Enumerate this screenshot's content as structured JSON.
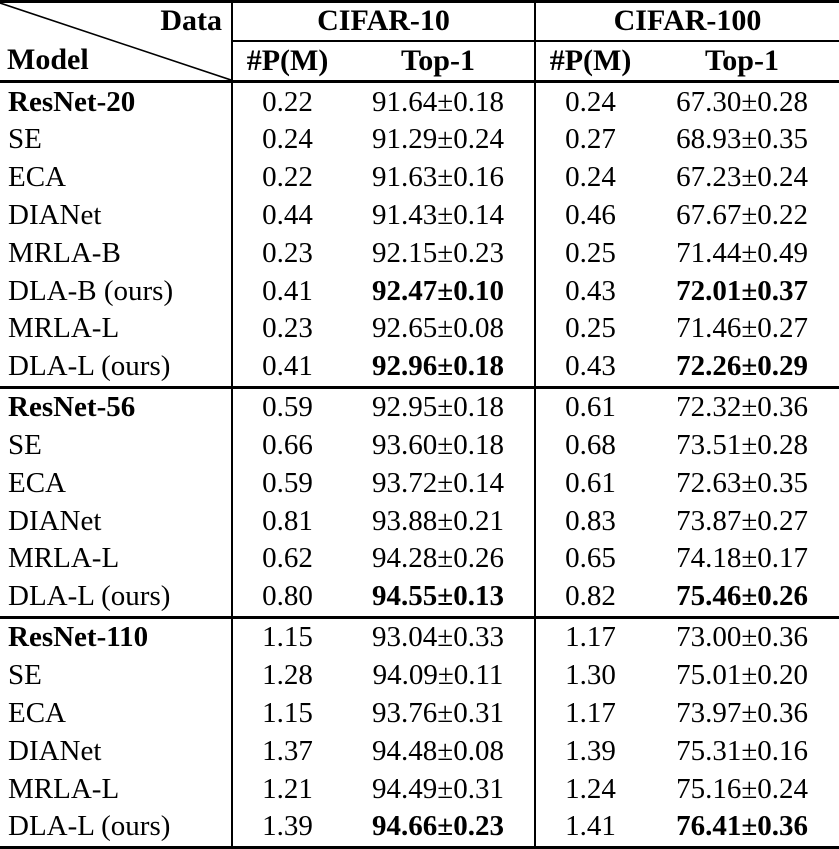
{
  "page": {
    "background": "#ffffff"
  },
  "table": {
    "colors": {
      "text": "#000000",
      "rule": "#000000",
      "background": "#ffffff"
    },
    "corner": {
      "top_right_label": "Data",
      "bottom_left_label": "Model"
    },
    "column_groups": [
      {
        "label": "CIFAR-10"
      },
      {
        "label": "CIFAR-100"
      }
    ],
    "sub_columns": {
      "params": "#P(M)",
      "top1": "Top-1"
    },
    "sections": [
      {
        "rows": [
          {
            "model": "ResNet-20",
            "model_bold": true,
            "cells": [
              {
                "v": "0.22"
              },
              {
                "v": "91.64±0.18"
              },
              {
                "v": "0.24"
              },
              {
                "v": "67.30±0.28"
              }
            ]
          },
          {
            "model": "SE",
            "model_bold": false,
            "cells": [
              {
                "v": "0.24"
              },
              {
                "v": "91.29±0.24"
              },
              {
                "v": "0.27"
              },
              {
                "v": "68.93±0.35"
              }
            ]
          },
          {
            "model": "ECA",
            "model_bold": false,
            "cells": [
              {
                "v": "0.22"
              },
              {
                "v": "91.63±0.16"
              },
              {
                "v": "0.24"
              },
              {
                "v": "67.23±0.24"
              }
            ]
          },
          {
            "model": "DIANet",
            "model_bold": false,
            "cells": [
              {
                "v": "0.44"
              },
              {
                "v": "91.43±0.14"
              },
              {
                "v": "0.46"
              },
              {
                "v": "67.67±0.22"
              }
            ]
          },
          {
            "model": "MRLA-B",
            "model_bold": false,
            "cells": [
              {
                "v": "0.23"
              },
              {
                "v": "92.15±0.23"
              },
              {
                "v": "0.25"
              },
              {
                "v": "71.44±0.49"
              }
            ]
          },
          {
            "model": "DLA-B (ours)",
            "model_bold": false,
            "cells": [
              {
                "v": "0.41"
              },
              {
                "v": "92.47±0.10",
                "bold": true
              },
              {
                "v": "0.43"
              },
              {
                "v": "72.01±0.37",
                "bold": true
              }
            ]
          },
          {
            "model": "MRLA-L",
            "model_bold": false,
            "cells": [
              {
                "v": "0.23"
              },
              {
                "v": "92.65±0.08"
              },
              {
                "v": "0.25"
              },
              {
                "v": "71.46±0.27"
              }
            ]
          },
          {
            "model": "DLA-L (ours)",
            "model_bold": false,
            "cells": [
              {
                "v": "0.41"
              },
              {
                "v": "92.96±0.18",
                "bold": true
              },
              {
                "v": "0.43"
              },
              {
                "v": "72.26±0.29",
                "bold": true
              }
            ]
          }
        ]
      },
      {
        "rows": [
          {
            "model": "ResNet-56",
            "model_bold": true,
            "cells": [
              {
                "v": "0.59"
              },
              {
                "v": "92.95±0.18"
              },
              {
                "v": "0.61"
              },
              {
                "v": "72.32±0.36"
              }
            ]
          },
          {
            "model": "SE",
            "model_bold": false,
            "cells": [
              {
                "v": "0.66"
              },
              {
                "v": "93.60±0.18"
              },
              {
                "v": "0.68"
              },
              {
                "v": "73.51±0.28"
              }
            ]
          },
          {
            "model": "ECA",
            "model_bold": false,
            "cells": [
              {
                "v": "0.59"
              },
              {
                "v": "93.72±0.14"
              },
              {
                "v": "0.61"
              },
              {
                "v": "72.63±0.35"
              }
            ]
          },
          {
            "model": "DIANet",
            "model_bold": false,
            "cells": [
              {
                "v": "0.81"
              },
              {
                "v": "93.88±0.21"
              },
              {
                "v": "0.83"
              },
              {
                "v": "73.87±0.27"
              }
            ]
          },
          {
            "model": "MRLA-L",
            "model_bold": false,
            "cells": [
              {
                "v": "0.62"
              },
              {
                "v": "94.28±0.26"
              },
              {
                "v": "0.65"
              },
              {
                "v": "74.18±0.17"
              }
            ]
          },
          {
            "model": "DLA-L (ours)",
            "model_bold": false,
            "cells": [
              {
                "v": "0.80"
              },
              {
                "v": "94.55±0.13",
                "bold": true
              },
              {
                "v": "0.82"
              },
              {
                "v": "75.46±0.26",
                "bold": true
              }
            ]
          }
        ]
      },
      {
        "rows": [
          {
            "model": "ResNet-110",
            "model_bold": true,
            "cells": [
              {
                "v": "1.15"
              },
              {
                "v": "93.04±0.33"
              },
              {
                "v": "1.17"
              },
              {
                "v": "73.00±0.36"
              }
            ]
          },
          {
            "model": "SE",
            "model_bold": false,
            "cells": [
              {
                "v": "1.28"
              },
              {
                "v": "94.09±0.11"
              },
              {
                "v": "1.30"
              },
              {
                "v": "75.01±0.20"
              }
            ]
          },
          {
            "model": "ECA",
            "model_bold": false,
            "cells": [
              {
                "v": "1.15"
              },
              {
                "v": "93.76±0.31"
              },
              {
                "v": "1.17"
              },
              {
                "v": "73.97±0.36"
              }
            ]
          },
          {
            "model": "DIANet",
            "model_bold": false,
            "cells": [
              {
                "v": "1.37"
              },
              {
                "v": "94.48±0.08"
              },
              {
                "v": "1.39"
              },
              {
                "v": "75.31±0.16"
              }
            ]
          },
          {
            "model": "MRLA-L",
            "model_bold": false,
            "cells": [
              {
                "v": "1.21"
              },
              {
                "v": "94.49±0.31"
              },
              {
                "v": "1.24"
              },
              {
                "v": "75.16±0.24"
              }
            ]
          },
          {
            "model": "DLA-L (ours)",
            "model_bold": false,
            "cells": [
              {
                "v": "1.39"
              },
              {
                "v": "94.66±0.23",
                "bold": true
              },
              {
                "v": "1.41"
              },
              {
                "v": "76.41±0.36",
                "bold": true
              }
            ]
          }
        ]
      }
    ]
  }
}
